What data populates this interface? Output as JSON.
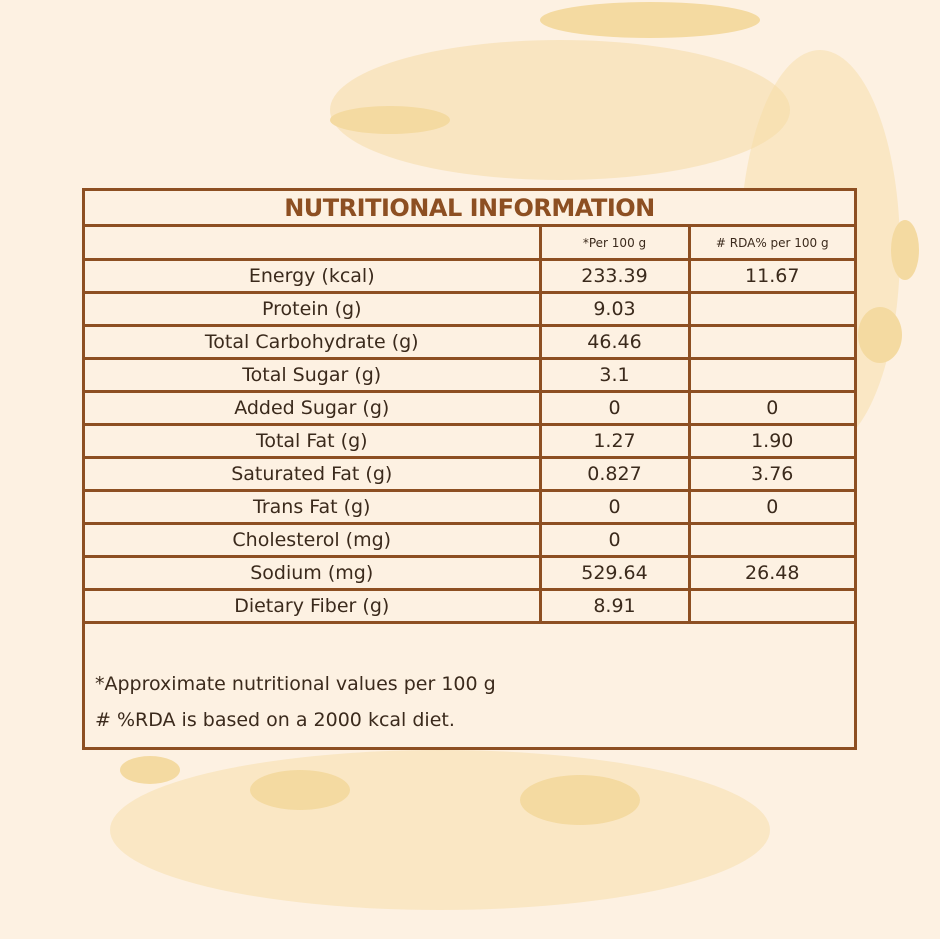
{
  "table": {
    "title": "NUTRITIONAL INFORMATION",
    "header": [
      "*Per 100 g",
      "# RDA% per 100 g"
    ],
    "rows": [
      {
        "label": "Energy (kcal)",
        "per_100g": "233.39",
        "rda": "11.67"
      },
      {
        "label": "Protein (g)",
        "per_100g": "9.03"
      },
      {
        "label": "Total Carbohydrate (g)",
        "per_100g": "46.46"
      },
      {
        "label": "Total Sugar (g)",
        "per_100g": "3.1"
      },
      {
        "label": "Added Sugar (g)",
        "per_100g": "0",
        "rda": "0"
      },
      {
        "label": "Total Fat (g)",
        "per_100g": "1.27",
        "rda": "1.90"
      },
      {
        "label": "Saturated Fat (g)",
        "per_100g": "0.827",
        "rda": "3.76"
      },
      {
        "label": "Trans Fat (g)",
        "per_100g": "0",
        "rda": "0"
      },
      {
        "label": "Cholesterol (mg)",
        "per_100g": "0"
      },
      {
        "label": "Sodium (mg)",
        "per_100g": "529.64",
        "rda": "26.48"
      },
      {
        "label": "Dietary Fiber (g)",
        "per_100g": "8.91"
      }
    ],
    "footnotes": [
      "*Approximate nutritional values per 100 g",
      "# %RDA is based on a 2000 kcal diet."
    ]
  }
}
